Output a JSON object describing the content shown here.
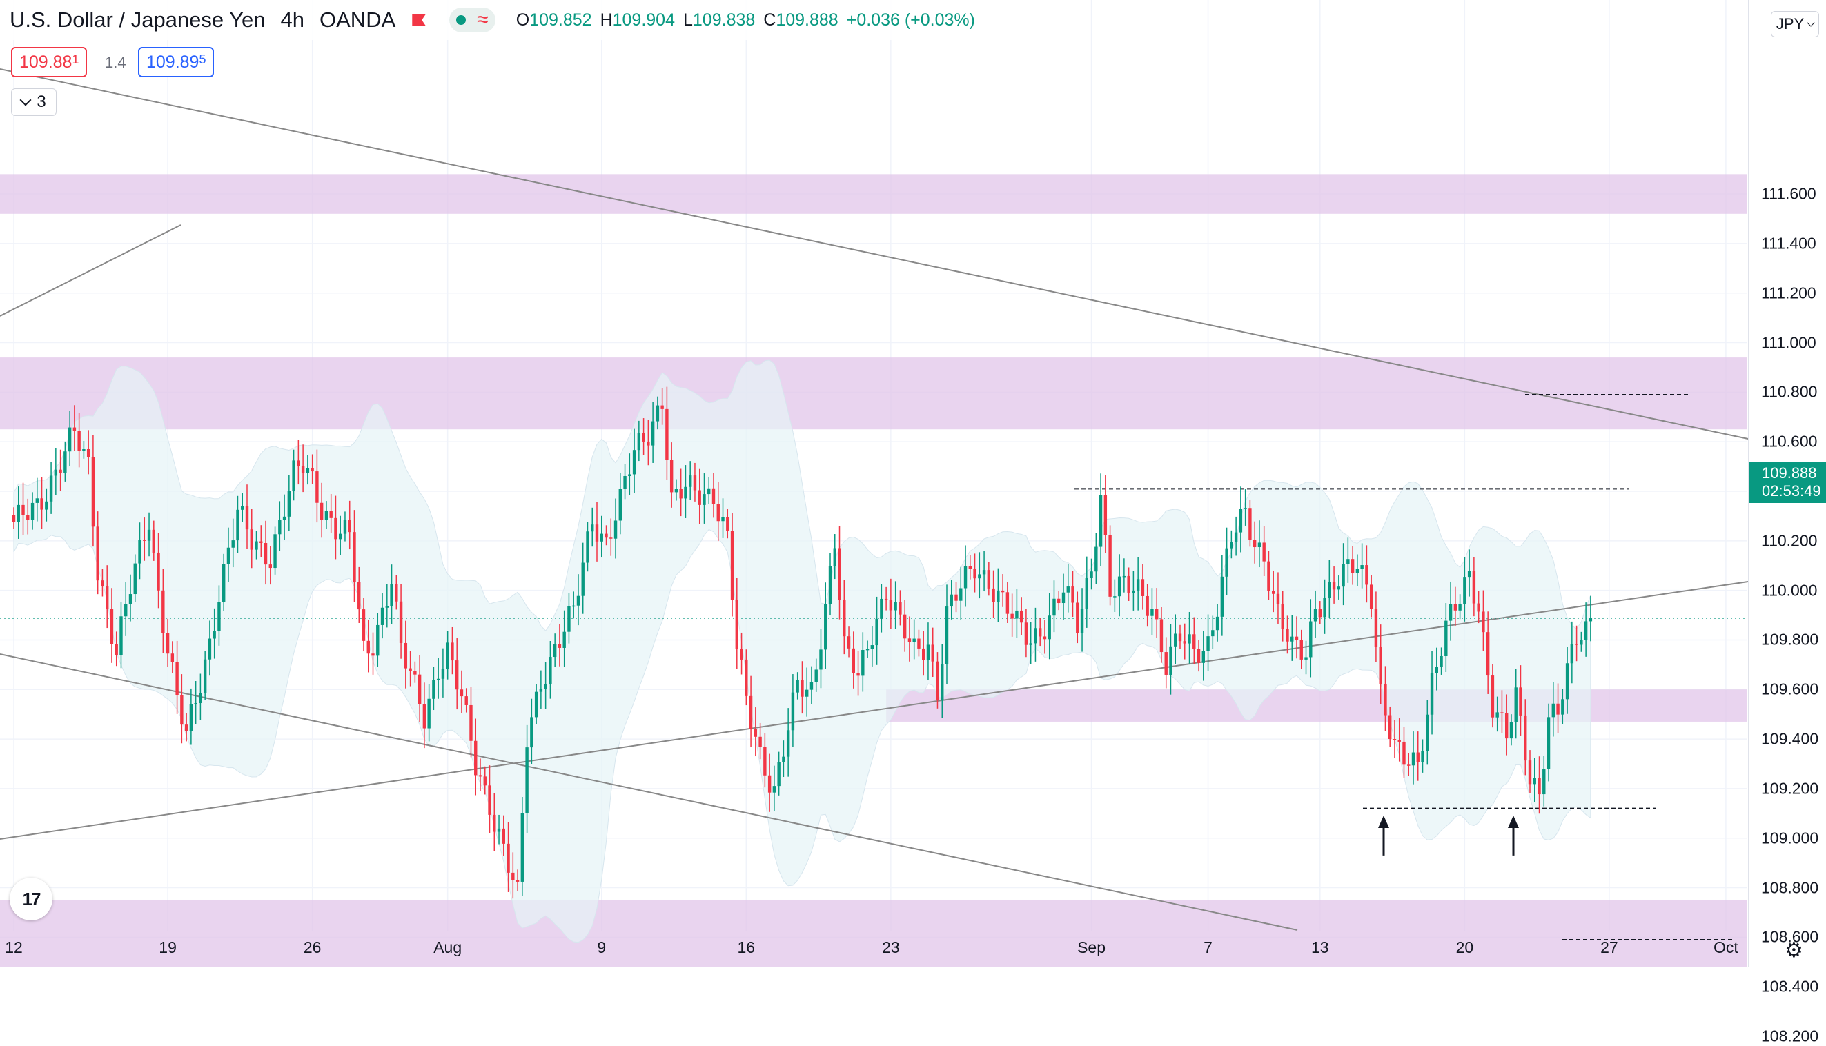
{
  "header": {
    "symbol": "U.S. Dollar / Japanese Yen",
    "timeframe": "4h",
    "source": "OANDA",
    "ohlc": [
      {
        "key": "O",
        "value": "109.852"
      },
      {
        "key": "H",
        "value": "109.904"
      },
      {
        "key": "L",
        "value": "109.838"
      },
      {
        "key": "C",
        "value": "109.888"
      }
    ],
    "change": "+0.036 (+0.03%)"
  },
  "trade": {
    "sell_main": "109.88",
    "sell_sup": "1",
    "spread": "1.4",
    "buy_main": "109.89",
    "buy_sup": "5"
  },
  "indicator_toggle": {
    "count": "3"
  },
  "currency": "JPY",
  "current_price": {
    "value": "109.888",
    "countdown": "02:53:49"
  },
  "colors": {
    "up": "#089981",
    "down": "#f23645",
    "zone": "#e1c5ea",
    "band": "#e6f4f6"
  },
  "chart_data": {
    "type": "candlestick",
    "ylim": [
      108.1,
      111.7
    ],
    "y_ticks": [
      "111.600",
      "111.400",
      "111.200",
      "111.000",
      "110.800",
      "110.600",
      "110.400",
      "110.200",
      "110.000",
      "109.800",
      "109.600",
      "109.400",
      "109.200",
      "109.000",
      "108.800",
      "108.600",
      "108.400",
      "108.200"
    ],
    "x_ticks": [
      {
        "label": "12",
        "i": 0
      },
      {
        "label": "19",
        "i": 33
      },
      {
        "label": "26",
        "i": 64
      },
      {
        "label": "Aug",
        "i": 93
      },
      {
        "label": "9",
        "i": 126
      },
      {
        "label": "16",
        "i": 157
      },
      {
        "label": "23",
        "i": 188
      },
      {
        "label": "Sep",
        "i": 231
      },
      {
        "label": "7",
        "i": 256
      },
      {
        "label": "13",
        "i": 280
      },
      {
        "label": "20",
        "i": 311
      },
      {
        "label": "27",
        "i": 342
      },
      {
        "label": "Oct",
        "i": 367
      }
    ],
    "anchors": [
      [
        0,
        110.25
      ],
      [
        5,
        110.35
      ],
      [
        8,
        110.45
      ],
      [
        13,
        110.62
      ],
      [
        16,
        110.5
      ],
      [
        18,
        110.1
      ],
      [
        22,
        109.75
      ],
      [
        25,
        110.0
      ],
      [
        29,
        110.3
      ],
      [
        31,
        110.0
      ],
      [
        35,
        109.55
      ],
      [
        37,
        109.4
      ],
      [
        39,
        109.55
      ],
      [
        42,
        109.8
      ],
      [
        44,
        110.0
      ],
      [
        48,
        110.3
      ],
      [
        51,
        110.2
      ],
      [
        55,
        110.15
      ],
      [
        60,
        110.45
      ],
      [
        62,
        110.5
      ],
      [
        64,
        110.45
      ],
      [
        66,
        110.35
      ],
      [
        69,
        110.25
      ],
      [
        72,
        110.2
      ],
      [
        75,
        109.75
      ],
      [
        77,
        109.8
      ],
      [
        81,
        110.05
      ],
      [
        83,
        109.75
      ],
      [
        86,
        109.6
      ],
      [
        88,
        109.5
      ],
      [
        91,
        109.7
      ],
      [
        93,
        109.75
      ],
      [
        96,
        109.55
      ],
      [
        99,
        109.3
      ],
      [
        102,
        109.15
      ],
      [
        105,
        108.95
      ],
      [
        108,
        108.75
      ],
      [
        110,
        109.4
      ],
      [
        113,
        109.65
      ],
      [
        117,
        109.8
      ],
      [
        120,
        109.9
      ],
      [
        122,
        110.1
      ],
      [
        124,
        110.3
      ],
      [
        127,
        110.2
      ],
      [
        130,
        110.35
      ],
      [
        133,
        110.55
      ],
      [
        136,
        110.65
      ],
      [
        139,
        110.78
      ],
      [
        141,
        110.35
      ],
      [
        144,
        110.4
      ],
      [
        147,
        110.4
      ],
      [
        150,
        110.4
      ],
      [
        153,
        110.2
      ],
      [
        155,
        109.75
      ],
      [
        157,
        109.55
      ],
      [
        160,
        109.35
      ],
      [
        163,
        109.2
      ],
      [
        165,
        109.35
      ],
      [
        168,
        109.6
      ],
      [
        171,
        109.6
      ],
      [
        174,
        109.95
      ],
      [
        176,
        110.2
      ],
      [
        178,
        109.75
      ],
      [
        181,
        109.65
      ],
      [
        184,
        109.85
      ],
      [
        187,
        110.0
      ],
      [
        190,
        109.85
      ],
      [
        193,
        109.75
      ],
      [
        196,
        109.8
      ],
      [
        198,
        109.6
      ],
      [
        200,
        109.9
      ],
      [
        203,
        110.0
      ],
      [
        206,
        110.1
      ],
      [
        209,
        110.05
      ],
      [
        212,
        109.95
      ],
      [
        215,
        109.85
      ],
      [
        218,
        109.8
      ],
      [
        222,
        109.9
      ],
      [
        225,
        110.0
      ],
      [
        228,
        109.85
      ],
      [
        231,
        110.1
      ],
      [
        233,
        110.4
      ],
      [
        235,
        110.0
      ],
      [
        238,
        110.0
      ],
      [
        241,
        110.0
      ],
      [
        244,
        109.95
      ],
      [
        247,
        109.7
      ],
      [
        250,
        109.8
      ],
      [
        253,
        109.75
      ],
      [
        256,
        109.8
      ],
      [
        258,
        109.95
      ],
      [
        261,
        110.2
      ],
      [
        264,
        110.3
      ],
      [
        266,
        110.2
      ],
      [
        268,
        110.15
      ],
      [
        271,
        109.9
      ],
      [
        274,
        109.75
      ],
      [
        277,
        109.75
      ],
      [
        279,
        109.95
      ],
      [
        282,
        110.0
      ],
      [
        285,
        110.05
      ],
      [
        288,
        110.1
      ],
      [
        291,
        110.0
      ],
      [
        293,
        109.6
      ],
      [
        296,
        109.35
      ],
      [
        298,
        109.3
      ],
      [
        301,
        109.3
      ],
      [
        304,
        109.65
      ],
      [
        307,
        109.85
      ],
      [
        310,
        109.95
      ],
      [
        312,
        110.05
      ],
      [
        314,
        109.95
      ],
      [
        317,
        109.55
      ],
      [
        320,
        109.4
      ],
      [
        322,
        109.55
      ],
      [
        325,
        109.25
      ],
      [
        327,
        109.2
      ],
      [
        329,
        109.5
      ],
      [
        331,
        109.5
      ],
      [
        333,
        109.65
      ],
      [
        335,
        109.8
      ],
      [
        337,
        109.85
      ],
      [
        338,
        109.888
      ]
    ],
    "drawn_ohlc_last": {
      "o": 109.852,
      "h": 109.904,
      "l": 109.838,
      "c": 109.888
    }
  }
}
